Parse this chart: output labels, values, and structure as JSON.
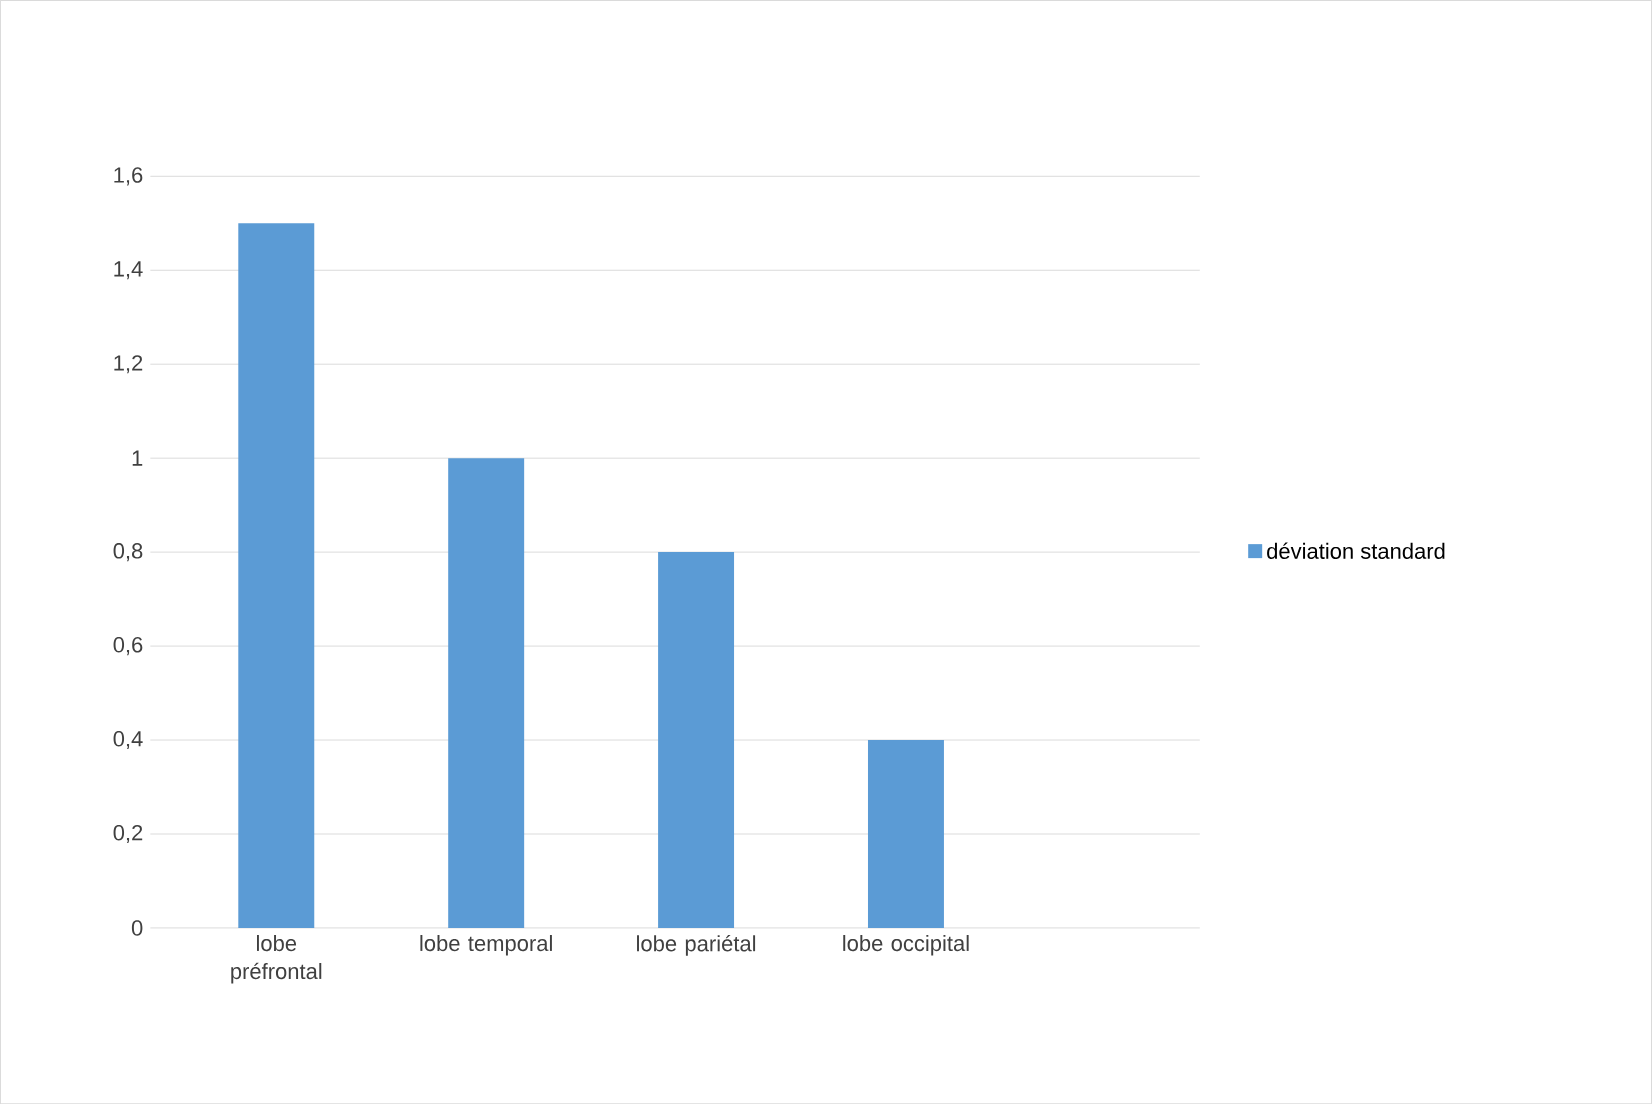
{
  "chart_data": {
    "type": "bar",
    "categories": [
      "lobe préfrontal",
      "lobe temporal",
      "lobe pariétal",
      "lobe occipital"
    ],
    "series": [
      {
        "name": "déviation standard",
        "color": "#5b9bd5",
        "values": [
          1.5,
          1.0,
          0.8,
          0.4
        ]
      }
    ],
    "ylim": [
      0,
      1.6
    ],
    "yticks": [
      0,
      {
        "value": 0.2,
        "label": "0,2"
      },
      {
        "value": 0.4,
        "label": "0,4"
      },
      {
        "value": 0.6,
        "label": "0,6"
      },
      {
        "value": 0.8,
        "label": "0,8"
      },
      1,
      {
        "value": 1.2,
        "label": "1,2"
      },
      {
        "value": 1.4,
        "label": "1,4"
      },
      {
        "value": 1.6,
        "label": "1,6"
      }
    ],
    "grid": "y",
    "legend": "right"
  }
}
